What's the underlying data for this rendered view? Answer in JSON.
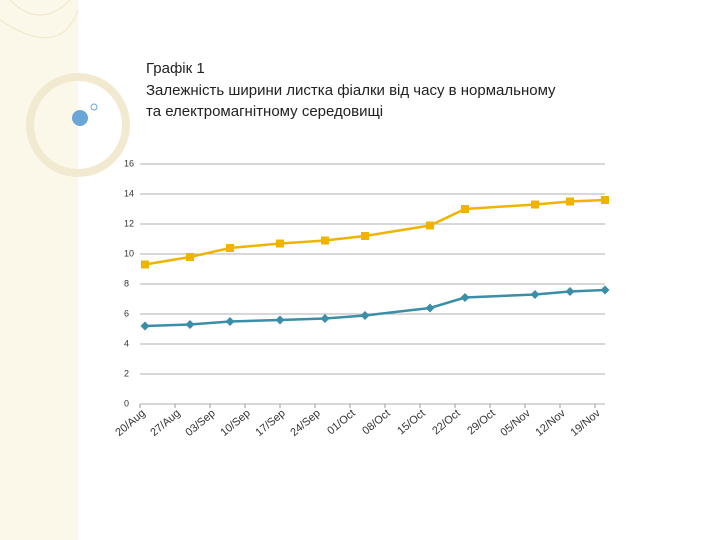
{
  "chart_data": {
    "type": "line",
    "title": "Графік 1",
    "subtitle": [
      "Залежність ширини листка фіалки від часу в нормальному",
      "та електромагнітному середовищі"
    ],
    "x": [
      1,
      10,
      18,
      28,
      37,
      45,
      58,
      65,
      79,
      86,
      93
    ],
    "xlim": [
      0,
      93
    ],
    "xticks": [
      {
        "value": 0,
        "label": "20/Aug"
      },
      {
        "value": 7,
        "label": "27/Aug"
      },
      {
        "value": 14,
        "label": "03/Sep"
      },
      {
        "value": 21,
        "label": "10/Sep"
      },
      {
        "value": 28,
        "label": "17/Sep"
      },
      {
        "value": 35,
        "label": "24/Sep"
      },
      {
        "value": 42,
        "label": "01/Oct"
      },
      {
        "value": 49,
        "label": "08/Oct"
      },
      {
        "value": 56,
        "label": "15/Oct"
      },
      {
        "value": 63,
        "label": "22/Oct"
      },
      {
        "value": 70,
        "label": "29/Oct"
      },
      {
        "value": 77,
        "label": "05/Nov"
      },
      {
        "value": 84,
        "label": "12/Nov"
      },
      {
        "value": 91,
        "label": "19/Nov"
      }
    ],
    "series": [
      {
        "color": "#f0b400",
        "marker": "square",
        "values": [
          9.3,
          9.8,
          10.4,
          10.7,
          10.9,
          11.2,
          11.9,
          13.0,
          13.3,
          13.5,
          13.6
        ]
      },
      {
        "color": "#3a8ea8",
        "marker": "diamond",
        "values": [
          5.2,
          5.3,
          5.5,
          5.6,
          5.7,
          5.9,
          6.4,
          7.1,
          7.3,
          7.5,
          7.6
        ]
      }
    ],
    "ylim": [
      0,
      16
    ],
    "yticks": [
      0,
      2,
      4,
      6,
      8,
      10,
      12,
      14,
      16
    ],
    "grid": true
  }
}
